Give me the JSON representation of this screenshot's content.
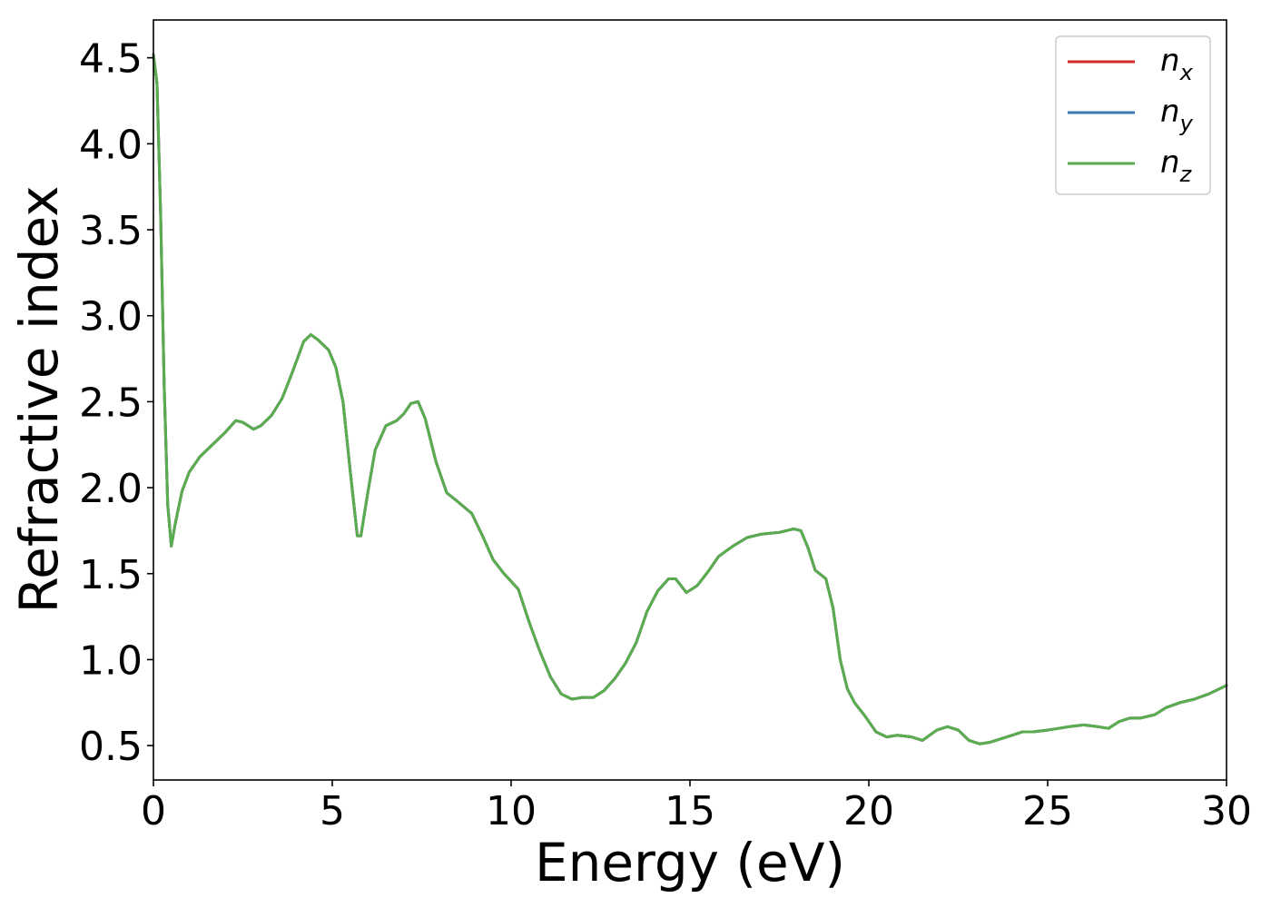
{
  "chart_data": {
    "type": "line",
    "xlabel": "Energy (eV)",
    "ylabel": "Refractive index",
    "xlim": [
      0,
      30
    ],
    "ylim": [
      0.3,
      4.72
    ],
    "xticks": [
      0,
      5,
      10,
      15,
      20,
      25,
      30
    ],
    "xtick_labels": [
      "0",
      "5",
      "10",
      "15",
      "20",
      "25",
      "30"
    ],
    "yticks": [
      0.5,
      1.0,
      1.5,
      2.0,
      2.5,
      3.0,
      3.5,
      4.0,
      4.5
    ],
    "ytick_labels": [
      "0.5",
      "1.0",
      "1.5",
      "2.0",
      "2.5",
      "3.0",
      "3.5",
      "4.0",
      "4.5"
    ],
    "grid": false,
    "legend_position": "top-right",
    "x": [
      0.0,
      0.1,
      0.2,
      0.3,
      0.4,
      0.5,
      0.6,
      0.8,
      1.0,
      1.3,
      1.6,
      2.0,
      2.3,
      2.5,
      2.8,
      3.0,
      3.3,
      3.6,
      3.9,
      4.2,
      4.4,
      4.6,
      4.9,
      5.1,
      5.3,
      5.5,
      5.7,
      5.8,
      6.0,
      6.2,
      6.5,
      6.8,
      7.0,
      7.2,
      7.4,
      7.6,
      7.9,
      8.2,
      8.5,
      8.9,
      9.2,
      9.5,
      9.8,
      10.2,
      10.5,
      10.8,
      11.1,
      11.4,
      11.7,
      12.0,
      12.3,
      12.6,
      12.9,
      13.2,
      13.5,
      13.8,
      14.1,
      14.4,
      14.6,
      14.9,
      15.2,
      15.5,
      15.8,
      16.2,
      16.6,
      17.0,
      17.5,
      17.9,
      18.1,
      18.3,
      18.5,
      18.8,
      19.0,
      19.2,
      19.4,
      19.6,
      19.9,
      20.2,
      20.5,
      20.8,
      21.2,
      21.5,
      21.9,
      22.2,
      22.5,
      22.8,
      23.1,
      23.4,
      23.7,
      24.0,
      24.3,
      24.6,
      25.0,
      25.3,
      25.6,
      26.0,
      26.4,
      26.7,
      27.0,
      27.3,
      27.6,
      28.0,
      28.3,
      28.7,
      29.1,
      29.5,
      30.0
    ],
    "series": [
      {
        "name_base": "n",
        "name_sub": "x",
        "color": "#d62728",
        "values": [
          4.52,
          4.35,
          3.6,
          2.6,
          1.9,
          1.66,
          1.78,
          1.98,
          2.09,
          2.18,
          2.24,
          2.32,
          2.39,
          2.38,
          2.34,
          2.36,
          2.42,
          2.52,
          2.68,
          2.85,
          2.89,
          2.86,
          2.8,
          2.7,
          2.5,
          2.1,
          1.72,
          1.72,
          1.98,
          2.22,
          2.36,
          2.39,
          2.43,
          2.49,
          2.5,
          2.4,
          2.15,
          1.97,
          1.92,
          1.85,
          1.72,
          1.58,
          1.5,
          1.41,
          1.22,
          1.05,
          0.9,
          0.8,
          0.77,
          0.78,
          0.78,
          0.82,
          0.89,
          0.98,
          1.1,
          1.28,
          1.4,
          1.47,
          1.47,
          1.39,
          1.43,
          1.51,
          1.6,
          1.66,
          1.71,
          1.73,
          1.74,
          1.76,
          1.75,
          1.65,
          1.52,
          1.47,
          1.3,
          1.0,
          0.83,
          0.75,
          0.67,
          0.58,
          0.55,
          0.56,
          0.55,
          0.53,
          0.59,
          0.61,
          0.59,
          0.53,
          0.51,
          0.52,
          0.54,
          0.56,
          0.58,
          0.58,
          0.59,
          0.6,
          0.61,
          0.62,
          0.61,
          0.6,
          0.64,
          0.66,
          0.66,
          0.68,
          0.72,
          0.75,
          0.77,
          0.8,
          0.85
        ]
      },
      {
        "name_base": "n",
        "name_sub": "y",
        "color": "#3a7ab5",
        "values": [
          4.52,
          4.35,
          3.6,
          2.6,
          1.9,
          1.66,
          1.78,
          1.98,
          2.09,
          2.18,
          2.24,
          2.32,
          2.39,
          2.38,
          2.34,
          2.36,
          2.42,
          2.52,
          2.68,
          2.85,
          2.89,
          2.86,
          2.8,
          2.7,
          2.5,
          2.1,
          1.72,
          1.72,
          1.98,
          2.22,
          2.36,
          2.39,
          2.43,
          2.49,
          2.5,
          2.4,
          2.15,
          1.97,
          1.92,
          1.85,
          1.72,
          1.58,
          1.5,
          1.41,
          1.22,
          1.05,
          0.9,
          0.8,
          0.77,
          0.78,
          0.78,
          0.82,
          0.89,
          0.98,
          1.1,
          1.28,
          1.4,
          1.47,
          1.47,
          1.39,
          1.43,
          1.51,
          1.6,
          1.66,
          1.71,
          1.73,
          1.74,
          1.76,
          1.75,
          1.65,
          1.52,
          1.47,
          1.3,
          1.0,
          0.83,
          0.75,
          0.67,
          0.58,
          0.55,
          0.56,
          0.55,
          0.53,
          0.59,
          0.61,
          0.59,
          0.53,
          0.51,
          0.52,
          0.54,
          0.56,
          0.58,
          0.58,
          0.59,
          0.6,
          0.61,
          0.62,
          0.61,
          0.6,
          0.64,
          0.66,
          0.66,
          0.68,
          0.72,
          0.75,
          0.77,
          0.8,
          0.85
        ]
      },
      {
        "name_base": "n",
        "name_sub": "z",
        "color": "#5aad4e",
        "values": [
          4.52,
          4.35,
          3.6,
          2.6,
          1.9,
          1.66,
          1.78,
          1.98,
          2.09,
          2.18,
          2.24,
          2.32,
          2.39,
          2.38,
          2.34,
          2.36,
          2.42,
          2.52,
          2.68,
          2.85,
          2.89,
          2.86,
          2.8,
          2.7,
          2.5,
          2.1,
          1.72,
          1.72,
          1.98,
          2.22,
          2.36,
          2.39,
          2.43,
          2.49,
          2.5,
          2.4,
          2.15,
          1.97,
          1.92,
          1.85,
          1.72,
          1.58,
          1.5,
          1.41,
          1.22,
          1.05,
          0.9,
          0.8,
          0.77,
          0.78,
          0.78,
          0.82,
          0.89,
          0.98,
          1.1,
          1.28,
          1.4,
          1.47,
          1.47,
          1.39,
          1.43,
          1.51,
          1.6,
          1.66,
          1.71,
          1.73,
          1.74,
          1.76,
          1.75,
          1.65,
          1.52,
          1.47,
          1.3,
          1.0,
          0.83,
          0.75,
          0.67,
          0.58,
          0.55,
          0.56,
          0.55,
          0.53,
          0.59,
          0.61,
          0.59,
          0.53,
          0.51,
          0.52,
          0.54,
          0.56,
          0.58,
          0.58,
          0.59,
          0.6,
          0.61,
          0.62,
          0.61,
          0.6,
          0.64,
          0.66,
          0.66,
          0.68,
          0.72,
          0.75,
          0.77,
          0.8,
          0.85
        ]
      }
    ]
  }
}
